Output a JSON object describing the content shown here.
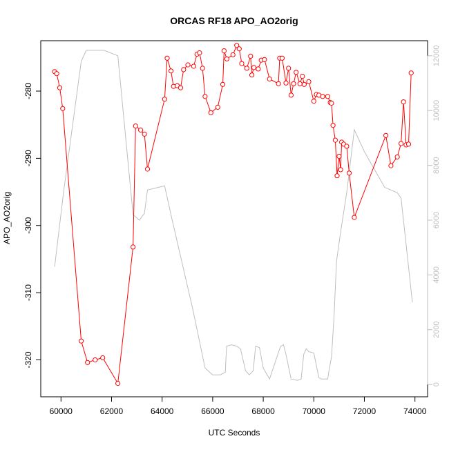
{
  "chart_data": {
    "type": "line",
    "title": "ORCAS RF18 APO_AO2orig",
    "xlabel": "UTC Seconds",
    "ylabel": "APO_AO2orig",
    "xlim": [
      59200,
      74500
    ],
    "ylim": [
      -325.5,
      -272.5
    ],
    "y2lim": [
      -450,
      12550
    ],
    "x_ticks": [
      60000,
      62000,
      64000,
      66000,
      68000,
      70000,
      72000,
      74000
    ],
    "x_tick_labels": [
      "60000",
      "62000",
      "64000",
      "66000",
      "68000",
      "70000",
      "72000",
      "74000"
    ],
    "y_ticks": [
      -320,
      -310,
      -300,
      -290,
      -280
    ],
    "y_tick_labels": [
      "-320",
      "-310",
      "-300",
      "-290",
      "-280"
    ],
    "y2_ticks": [
      0,
      2000,
      4000,
      6000,
      8000,
      10000,
      12000
    ],
    "y2_tick_labels": [
      "0",
      "2000",
      "4000",
      "6000",
      "8000",
      "10000",
      "12000"
    ],
    "grid": false,
    "colors": {
      "primary": "#ff0000",
      "secondary": "#bebebe",
      "axis": "#000000"
    },
    "series": [
      {
        "axis": "left",
        "style": "line+points",
        "color": "#ff0000",
        "x": [
          59750,
          59830,
          59950,
          60070,
          60800,
          61050,
          61350,
          61650,
          62250,
          62850,
          62950,
          63150,
          63300,
          63420,
          64100,
          64200,
          64350,
          64450,
          64600,
          64730,
          64850,
          65020,
          65250,
          65380,
          65480,
          65600,
          65700,
          65930,
          66200,
          66400,
          66450,
          66560,
          66800,
          66950,
          67050,
          67150,
          67350,
          67500,
          67550,
          67630,
          67800,
          67920,
          68050,
          68250,
          68600,
          68650,
          68750,
          68900,
          69000,
          69100,
          69200,
          69300,
          69450,
          69550,
          69620,
          69800,
          70000,
          70100,
          70200,
          70350,
          70550,
          70650,
          70700,
          70760,
          70850,
          70920,
          71000,
          71060,
          71100,
          71180,
          71300,
          71400,
          71600,
          72850,
          73050,
          73300,
          73450,
          73550,
          73650,
          73750,
          73850
        ],
        "y": [
          -277.1,
          -277.4,
          -279.5,
          -282.6,
          -317.2,
          -320.4,
          -320.0,
          -319.7,
          -323.5,
          -303.2,
          -285.2,
          -285.8,
          -286.4,
          -291.6,
          -281.2,
          -275.1,
          -277.0,
          -279.3,
          -279.2,
          -279.5,
          -276.8,
          -276.1,
          -276.3,
          -274.5,
          -274.3,
          -276.6,
          -280.8,
          -283.2,
          -282.4,
          -279.0,
          -274.0,
          -275.2,
          -274.6,
          -273.2,
          -273.7,
          -275.9,
          -276.6,
          -274.8,
          -277.6,
          -276.5,
          -276.7,
          -275.4,
          -275.3,
          -278.2,
          -278.9,
          -275.1,
          -275.1,
          -278.8,
          -276.6,
          -280.6,
          -278.9,
          -277.2,
          -278.9,
          -277.8,
          -279.0,
          -278.6,
          -281.5,
          -280.5,
          -280.6,
          -280.8,
          -280.8,
          -281.7,
          -281.8,
          -285.1,
          -287.3,
          -292.6,
          -289.7,
          -291.7,
          -287.6,
          -287.9,
          -288.2,
          -292.2,
          -298.8,
          -286.6,
          -291.1,
          -289.8,
          -287.8,
          -281.6,
          -288.0,
          -287.9,
          -277.3
        ]
      },
      {
        "axis": "right",
        "style": "line",
        "color": "#bebebe",
        "x": [
          59750,
          60100,
          60800,
          61000,
          61700,
          62250,
          62850,
          63100,
          63300,
          63420,
          64100,
          64400,
          65200,
          65700,
          66000,
          66300,
          66500,
          66550,
          66750,
          66950,
          67100,
          67300,
          67450,
          67600,
          67700,
          67850,
          68000,
          68250,
          68650,
          68700,
          68800,
          68900,
          69100,
          69350,
          69500,
          69600,
          69700,
          69800,
          70000,
          70200,
          70300,
          70550,
          70600,
          70700,
          70800,
          70900,
          71050,
          71300,
          71600,
          72000,
          72800,
          73300,
          73450,
          73900
        ],
        "y": [
          4300,
          7000,
          11800,
          12200,
          12200,
          12000,
          6200,
          6000,
          6250,
          7100,
          7250,
          6000,
          2800,
          600,
          350,
          350,
          450,
          1400,
          1450,
          1400,
          1300,
          500,
          350,
          500,
          1400,
          1350,
          600,
          200,
          1300,
          1400,
          1450,
          1100,
          200,
          150,
          200,
          1100,
          1300,
          1200,
          1150,
          250,
          200,
          200,
          500,
          1000,
          2500,
          4500,
          5500,
          7000,
          9300,
          8500,
          7200,
          7000,
          6800,
          3000
        ]
      }
    ]
  }
}
